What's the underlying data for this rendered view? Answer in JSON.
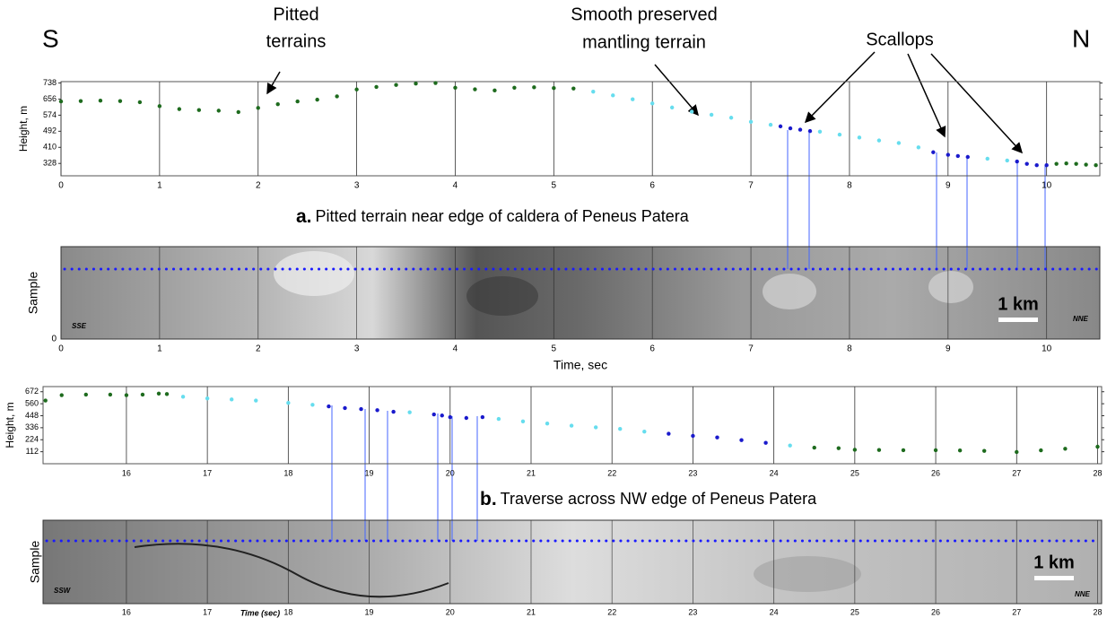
{
  "chart_data": [
    {
      "type": "scatter",
      "corner_left": "S",
      "corner_right": "N",
      "annotations": {
        "pitted": [
          "Pitted",
          "terrains"
        ],
        "smooth": [
          "Smooth preserved",
          "mantling terrain"
        ],
        "scallops": "Scallops"
      },
      "y_label": "Height, m",
      "caption_label": "a.",
      "caption": "Pitted terrain near edge of caldera of Peneus Patera",
      "xlim": [
        0,
        10.54
      ],
      "xticks": [
        0,
        1,
        2,
        3,
        4,
        5,
        6,
        7,
        8,
        9,
        10
      ],
      "ylim": [
        265,
        745
      ],
      "yticks": [
        328,
        410,
        492,
        574,
        656,
        738
      ],
      "series": [
        {
          "color": "#1e6b1e",
          "x": [
            0,
            0.2,
            0.4,
            0.6,
            0.8,
            1.0,
            1.2,
            1.4,
            1.6,
            1.8,
            2.0,
            2.2,
            2.4,
            2.6,
            2.8,
            3.0,
            3.2,
            3.4,
            3.6,
            3.8,
            4.0,
            4.2,
            4.4,
            4.6,
            4.8,
            5.0,
            5.2
          ],
          "values": [
            644,
            646,
            648,
            646,
            640,
            620,
            605,
            600,
            597,
            590,
            611,
            630,
            644,
            653,
            670,
            705,
            718,
            728,
            735,
            738,
            714,
            706,
            700,
            714,
            716,
            712,
            710
          ]
        },
        {
          "color": "#66ddee",
          "x": [
            5.4,
            5.6,
            5.8,
            6.0,
            6.2,
            6.4,
            6.6,
            6.8,
            7.0,
            7.2,
            7.7,
            7.9,
            8.1,
            8.3,
            8.5,
            8.7,
            9.4,
            9.6
          ],
          "values": [
            694,
            675,
            655,
            634,
            613,
            592,
            576,
            561,
            540,
            525,
            490,
            475,
            460,
            445,
            432,
            410,
            352,
            343
          ]
        },
        {
          "color": "#1a1acc",
          "x": [
            7.3,
            7.4,
            7.5,
            7.6,
            8.85,
            9.0,
            9.1,
            9.2,
            9.7,
            9.8,
            9.9,
            10.0
          ],
          "values": [
            517,
            507,
            500,
            493,
            385,
            372,
            366,
            361,
            338,
            326,
            319,
            319
          ]
        },
        {
          "color": "#1e6b1e",
          "x": [
            10.1,
            10.2,
            10.3,
            10.4,
            10.5
          ],
          "values": [
            326,
            328,
            326,
            322,
            319
          ]
        }
      ],
      "image_panel": {
        "y_label": "Sample",
        "yticks": [
          0
        ],
        "left_label": "SSE",
        "right_label": "NNE",
        "scale_label": "1 km",
        "x_label": "Time, sec"
      }
    },
    {
      "type": "scatter",
      "y_label": "Height, m",
      "caption_label": "b.",
      "caption": "Traverse across NW edge of Peneus Patera",
      "xlim": [
        14.97,
        28.05
      ],
      "xticks": [
        16,
        17,
        18,
        19,
        20,
        21,
        22,
        23,
        24,
        25,
        26,
        27,
        28
      ],
      "ylim": [
        0,
        720
      ],
      "yticks": [
        112,
        224,
        336,
        448,
        560,
        672
      ],
      "series": [
        {
          "color": "#1e6b1e",
          "x": [
            15.0,
            15.2,
            15.5,
            15.8,
            16.0,
            16.2,
            16.4,
            16.5
          ],
          "values": [
            590,
            640,
            645,
            645,
            640,
            645,
            655,
            650
          ]
        },
        {
          "color": "#66ddee",
          "x": [
            16.7,
            17.0,
            17.3,
            17.6,
            18.0,
            18.3,
            19.5,
            20.6,
            20.9,
            21.2,
            21.5,
            21.8,
            22.1,
            22.4,
            24.2
          ],
          "values": [
            625,
            610,
            600,
            590,
            568,
            550,
            480,
            418,
            395,
            375,
            355,
            340,
            325,
            300,
            170
          ]
        },
        {
          "color": "#1a1acc",
          "x": [
            18.5,
            18.7,
            18.9,
            19.1,
            19.3,
            19.8,
            19.9,
            20.0,
            20.2,
            20.4,
            22.7,
            23.0,
            23.3,
            23.6,
            23.9
          ],
          "values": [
            535,
            520,
            510,
            500,
            485,
            460,
            450,
            435,
            427,
            435,
            280,
            260,
            245,
            220,
            195
          ]
        },
        {
          "color": "#1e6b1e",
          "x": [
            24.5,
            24.8,
            25.0,
            25.3,
            25.6,
            26.0,
            26.3,
            26.6,
            27.0,
            27.3,
            27.6,
            28.0
          ],
          "values": [
            150,
            145,
            130,
            128,
            126,
            126,
            124,
            120,
            109,
            125,
            140,
            159
          ]
        }
      ],
      "image_panel": {
        "y_label": "Sample",
        "left_label": "SSW",
        "right_label": "NNE",
        "scale_label": "1 km",
        "x_label": "Time (sec)"
      }
    }
  ]
}
